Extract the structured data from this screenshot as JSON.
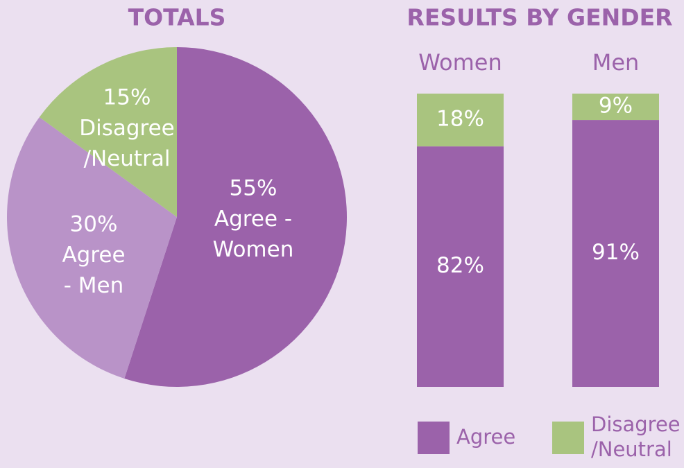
{
  "chart_data": [
    {
      "type": "pie",
      "title": "TOTALS",
      "categories": [
        [
          "Agree -",
          "Women"
        ],
        [
          "Agree",
          "- Men"
        ],
        [
          "Disagree",
          "/Neutral"
        ]
      ],
      "values": [
        55,
        30,
        15
      ],
      "value_labels": [
        "55%",
        "30%",
        "15%"
      ],
      "colors": [
        "#9b62aa",
        "#b993c8",
        "#a9c47f"
      ]
    },
    {
      "type": "stacked-bar",
      "title": "RESULTS BY GENDER",
      "categories": [
        "Women",
        "Men"
      ],
      "ylim": [
        0,
        100
      ],
      "series": [
        {
          "name": [
            "Agree"
          ],
          "color": "#9b62aa",
          "values": [
            82,
            91
          ],
          "value_labels": [
            "82%",
            "91%"
          ]
        },
        {
          "name": [
            "Disagree",
            "/Neutral"
          ],
          "color": "#a9c47f",
          "values": [
            18,
            9
          ],
          "value_labels": [
            "18%",
            "9%"
          ]
        }
      ]
    }
  ]
}
